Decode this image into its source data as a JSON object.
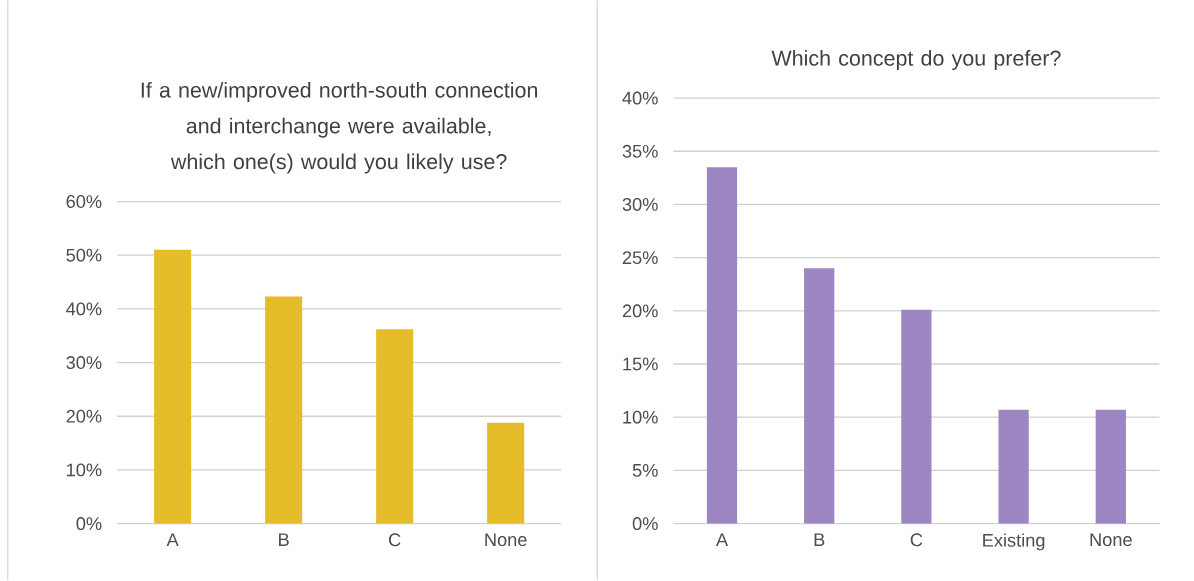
{
  "chart_data": [
    {
      "type": "bar",
      "title": "If a new/improved north-south connection and interchange were available, which one(s) would you likely use?",
      "categories": [
        "A",
        "B",
        "C",
        "None"
      ],
      "values": [
        51.0,
        42.3,
        36.2,
        18.8
      ],
      "color": "#e5bc29",
      "ylim": [
        0,
        60
      ],
      "yticks": [
        {
          "value": 0,
          "label": "0%"
        },
        {
          "value": 10,
          "label": "10%"
        },
        {
          "value": 20,
          "label": "20%"
        },
        {
          "value": 30,
          "label": "30%"
        },
        {
          "value": 40,
          "label": "40%"
        },
        {
          "value": 50,
          "label": "50%"
        },
        {
          "value": 60,
          "label": "60%"
        }
      ],
      "grid": "y"
    },
    {
      "type": "bar",
      "title": "Which concept do you prefer?",
      "categories": [
        "A",
        "B",
        "C",
        "Existing",
        "None"
      ],
      "values": [
        33.5,
        24.0,
        20.1,
        10.7,
        10.7
      ],
      "color": "#9d86c1",
      "ylim": [
        0,
        40
      ],
      "yticks": [
        {
          "value": 0,
          "label": "0%"
        },
        {
          "value": 5,
          "label": "5%"
        },
        {
          "value": 10,
          "label": "10%"
        },
        {
          "value": 15,
          "label": "15%"
        },
        {
          "value": 20,
          "label": "20%"
        },
        {
          "value": 25,
          "label": "25%"
        },
        {
          "value": 30,
          "label": "30%"
        },
        {
          "value": 35,
          "label": "35%"
        },
        {
          "value": 40,
          "label": "40%"
        }
      ],
      "grid": "y"
    }
  ]
}
